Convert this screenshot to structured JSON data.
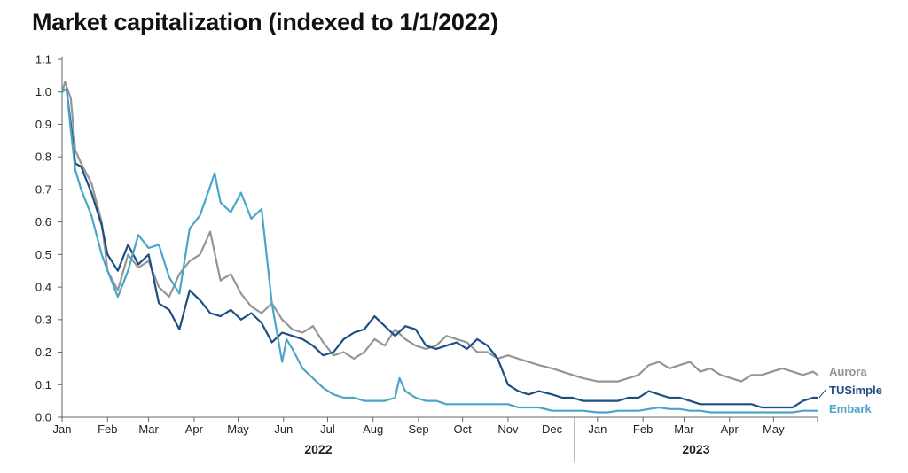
{
  "chart_data": {
    "type": "line",
    "title": "Market capitalization (indexed to 1/1/2022)",
    "xlabel": "",
    "ylabel": "",
    "ylim": [
      0,
      1.1
    ],
    "y_ticks": [
      "0.0",
      "0.1",
      "0.2",
      "0.3",
      "0.4",
      "0.5",
      "0.6",
      "0.7",
      "0.8",
      "0.9",
      "1.0",
      "1.1"
    ],
    "x_month_labels": [
      "Jan",
      "Feb",
      "Mar",
      "Apr",
      "May",
      "Jun",
      "Jul",
      "Aug",
      "Sep",
      "Oct",
      "Nov",
      "Dec",
      "Jan",
      "Feb",
      "Mar",
      "Apr",
      "May"
    ],
    "x_year_labels": [
      "2022",
      "2023"
    ],
    "x_start": "2022-01-01",
    "x_end": "2023-05-31",
    "grid": false,
    "legend": "inline labels at right end of lines",
    "series": [
      {
        "name": "Aurora",
        "color": "#959595",
        "points": [
          [
            "2022-01-01",
            1.0
          ],
          [
            "2022-01-03",
            1.03
          ],
          [
            "2022-01-07",
            0.98
          ],
          [
            "2022-01-10",
            0.82
          ],
          [
            "2022-01-14",
            0.78
          ],
          [
            "2022-01-21",
            0.72
          ],
          [
            "2022-01-28",
            0.6
          ],
          [
            "2022-02-01",
            0.45
          ],
          [
            "2022-02-08",
            0.39
          ],
          [
            "2022-02-15",
            0.5
          ],
          [
            "2022-02-22",
            0.46
          ],
          [
            "2022-03-01",
            0.48
          ],
          [
            "2022-03-08",
            0.4
          ],
          [
            "2022-03-15",
            0.37
          ],
          [
            "2022-03-22",
            0.44
          ],
          [
            "2022-03-29",
            0.48
          ],
          [
            "2022-04-05",
            0.5
          ],
          [
            "2022-04-12",
            0.57
          ],
          [
            "2022-04-19",
            0.42
          ],
          [
            "2022-04-26",
            0.44
          ],
          [
            "2022-05-03",
            0.38
          ],
          [
            "2022-05-10",
            0.34
          ],
          [
            "2022-05-17",
            0.32
          ],
          [
            "2022-05-24",
            0.35
          ],
          [
            "2022-05-31",
            0.3
          ],
          [
            "2022-06-07",
            0.27
          ],
          [
            "2022-06-14",
            0.26
          ],
          [
            "2022-06-21",
            0.28
          ],
          [
            "2022-06-28",
            0.23
          ],
          [
            "2022-07-05",
            0.19
          ],
          [
            "2022-07-12",
            0.2
          ],
          [
            "2022-07-19",
            0.18
          ],
          [
            "2022-07-26",
            0.2
          ],
          [
            "2022-08-02",
            0.24
          ],
          [
            "2022-08-09",
            0.22
          ],
          [
            "2022-08-16",
            0.27
          ],
          [
            "2022-08-23",
            0.24
          ],
          [
            "2022-08-30",
            0.22
          ],
          [
            "2022-09-06",
            0.21
          ],
          [
            "2022-09-13",
            0.22
          ],
          [
            "2022-09-20",
            0.25
          ],
          [
            "2022-09-27",
            0.24
          ],
          [
            "2022-10-04",
            0.23
          ],
          [
            "2022-10-11",
            0.2
          ],
          [
            "2022-10-18",
            0.2
          ],
          [
            "2022-10-25",
            0.18
          ],
          [
            "2022-11-01",
            0.19
          ],
          [
            "2022-11-08",
            0.18
          ],
          [
            "2022-11-15",
            0.17
          ],
          [
            "2022-11-22",
            0.16
          ],
          [
            "2022-12-01",
            0.15
          ],
          [
            "2022-12-08",
            0.14
          ],
          [
            "2022-12-15",
            0.13
          ],
          [
            "2022-12-22",
            0.12
          ],
          [
            "2023-01-01",
            0.11
          ],
          [
            "2023-01-08",
            0.11
          ],
          [
            "2023-01-15",
            0.11
          ],
          [
            "2023-01-22",
            0.12
          ],
          [
            "2023-01-29",
            0.13
          ],
          [
            "2023-02-05",
            0.16
          ],
          [
            "2023-02-12",
            0.17
          ],
          [
            "2023-02-19",
            0.15
          ],
          [
            "2023-02-26",
            0.16
          ],
          [
            "2023-03-05",
            0.17
          ],
          [
            "2023-03-12",
            0.14
          ],
          [
            "2023-03-19",
            0.15
          ],
          [
            "2023-03-26",
            0.13
          ],
          [
            "2023-04-02",
            0.12
          ],
          [
            "2023-04-09",
            0.11
          ],
          [
            "2023-04-16",
            0.13
          ],
          [
            "2023-04-23",
            0.13
          ],
          [
            "2023-04-30",
            0.14
          ],
          [
            "2023-05-07",
            0.15
          ],
          [
            "2023-05-14",
            0.14
          ],
          [
            "2023-05-21",
            0.13
          ],
          [
            "2023-05-28",
            0.14
          ],
          [
            "2023-05-31",
            0.13
          ]
        ]
      },
      {
        "name": "TUSimple",
        "color": "#1f4e82",
        "points": [
          [
            "2022-01-01",
            1.0
          ],
          [
            "2022-01-04",
            1.01
          ],
          [
            "2022-01-07",
            0.9
          ],
          [
            "2022-01-10",
            0.78
          ],
          [
            "2022-01-14",
            0.77
          ],
          [
            "2022-01-21",
            0.69
          ],
          [
            "2022-01-28",
            0.59
          ],
          [
            "2022-02-01",
            0.5
          ],
          [
            "2022-02-08",
            0.45
          ],
          [
            "2022-02-15",
            0.53
          ],
          [
            "2022-02-22",
            0.47
          ],
          [
            "2022-03-01",
            0.5
          ],
          [
            "2022-03-08",
            0.35
          ],
          [
            "2022-03-15",
            0.33
          ],
          [
            "2022-03-22",
            0.27
          ],
          [
            "2022-03-29",
            0.39
          ],
          [
            "2022-04-05",
            0.36
          ],
          [
            "2022-04-12",
            0.32
          ],
          [
            "2022-04-19",
            0.31
          ],
          [
            "2022-04-26",
            0.33
          ],
          [
            "2022-05-03",
            0.3
          ],
          [
            "2022-05-10",
            0.32
          ],
          [
            "2022-05-17",
            0.29
          ],
          [
            "2022-05-24",
            0.23
          ],
          [
            "2022-05-31",
            0.26
          ],
          [
            "2022-06-07",
            0.25
          ],
          [
            "2022-06-14",
            0.24
          ],
          [
            "2022-06-21",
            0.22
          ],
          [
            "2022-06-28",
            0.19
          ],
          [
            "2022-07-05",
            0.2
          ],
          [
            "2022-07-12",
            0.24
          ],
          [
            "2022-07-19",
            0.26
          ],
          [
            "2022-07-26",
            0.27
          ],
          [
            "2022-08-02",
            0.31
          ],
          [
            "2022-08-09",
            0.28
          ],
          [
            "2022-08-16",
            0.25
          ],
          [
            "2022-08-23",
            0.28
          ],
          [
            "2022-08-30",
            0.27
          ],
          [
            "2022-09-06",
            0.22
          ],
          [
            "2022-09-13",
            0.21
          ],
          [
            "2022-09-20",
            0.22
          ],
          [
            "2022-09-27",
            0.23
          ],
          [
            "2022-10-04",
            0.21
          ],
          [
            "2022-10-11",
            0.24
          ],
          [
            "2022-10-18",
            0.22
          ],
          [
            "2022-10-25",
            0.18
          ],
          [
            "2022-11-01",
            0.1
          ],
          [
            "2022-11-08",
            0.08
          ],
          [
            "2022-11-15",
            0.07
          ],
          [
            "2022-11-22",
            0.08
          ],
          [
            "2022-12-01",
            0.07
          ],
          [
            "2022-12-08",
            0.06
          ],
          [
            "2022-12-15",
            0.06
          ],
          [
            "2022-12-22",
            0.05
          ],
          [
            "2023-01-01",
            0.05
          ],
          [
            "2023-01-08",
            0.05
          ],
          [
            "2023-01-15",
            0.05
          ],
          [
            "2023-01-22",
            0.06
          ],
          [
            "2023-01-29",
            0.06
          ],
          [
            "2023-02-05",
            0.08
          ],
          [
            "2023-02-12",
            0.07
          ],
          [
            "2023-02-19",
            0.06
          ],
          [
            "2023-02-26",
            0.06
          ],
          [
            "2023-03-05",
            0.05
          ],
          [
            "2023-03-12",
            0.04
          ],
          [
            "2023-03-19",
            0.04
          ],
          [
            "2023-03-26",
            0.04
          ],
          [
            "2023-04-02",
            0.04
          ],
          [
            "2023-04-09",
            0.04
          ],
          [
            "2023-04-16",
            0.04
          ],
          [
            "2023-04-23",
            0.03
          ],
          [
            "2023-04-30",
            0.03
          ],
          [
            "2023-05-07",
            0.03
          ],
          [
            "2023-05-14",
            0.03
          ],
          [
            "2023-05-21",
            0.05
          ],
          [
            "2023-05-28",
            0.06
          ],
          [
            "2023-05-31",
            0.06
          ]
        ]
      },
      {
        "name": "Embark",
        "color": "#4aa6c8",
        "points": [
          [
            "2022-01-01",
            1.0
          ],
          [
            "2022-01-04",
            1.01
          ],
          [
            "2022-01-07",
            0.88
          ],
          [
            "2022-01-10",
            0.76
          ],
          [
            "2022-01-14",
            0.7
          ],
          [
            "2022-01-21",
            0.62
          ],
          [
            "2022-01-28",
            0.5
          ],
          [
            "2022-02-01",
            0.45
          ],
          [
            "2022-02-08",
            0.37
          ],
          [
            "2022-02-15",
            0.45
          ],
          [
            "2022-02-22",
            0.56
          ],
          [
            "2022-03-01",
            0.52
          ],
          [
            "2022-03-08",
            0.53
          ],
          [
            "2022-03-15",
            0.43
          ],
          [
            "2022-03-22",
            0.38
          ],
          [
            "2022-03-29",
            0.58
          ],
          [
            "2022-04-05",
            0.62
          ],
          [
            "2022-04-12",
            0.71
          ],
          [
            "2022-04-15",
            0.75
          ],
          [
            "2022-04-19",
            0.66
          ],
          [
            "2022-04-26",
            0.63
          ],
          [
            "2022-05-03",
            0.69
          ],
          [
            "2022-05-10",
            0.61
          ],
          [
            "2022-05-17",
            0.64
          ],
          [
            "2022-05-24",
            0.35
          ],
          [
            "2022-05-31",
            0.17
          ],
          [
            "2022-06-03",
            0.24
          ],
          [
            "2022-06-07",
            0.21
          ],
          [
            "2022-06-14",
            0.15
          ],
          [
            "2022-06-21",
            0.12
          ],
          [
            "2022-06-28",
            0.09
          ],
          [
            "2022-07-05",
            0.07
          ],
          [
            "2022-07-12",
            0.06
          ],
          [
            "2022-07-19",
            0.06
          ],
          [
            "2022-07-26",
            0.05
          ],
          [
            "2022-08-02",
            0.05
          ],
          [
            "2022-08-09",
            0.05
          ],
          [
            "2022-08-16",
            0.06
          ],
          [
            "2022-08-19",
            0.12
          ],
          [
            "2022-08-23",
            0.08
          ],
          [
            "2022-08-30",
            0.06
          ],
          [
            "2022-09-06",
            0.05
          ],
          [
            "2022-09-13",
            0.05
          ],
          [
            "2022-09-20",
            0.04
          ],
          [
            "2022-09-27",
            0.04
          ],
          [
            "2022-10-04",
            0.04
          ],
          [
            "2022-10-11",
            0.04
          ],
          [
            "2022-10-18",
            0.04
          ],
          [
            "2022-10-25",
            0.04
          ],
          [
            "2022-11-01",
            0.04
          ],
          [
            "2022-11-08",
            0.03
          ],
          [
            "2022-11-15",
            0.03
          ],
          [
            "2022-11-22",
            0.03
          ],
          [
            "2022-12-01",
            0.02
          ],
          [
            "2022-12-08",
            0.02
          ],
          [
            "2022-12-15",
            0.02
          ],
          [
            "2022-12-22",
            0.02
          ],
          [
            "2023-01-01",
            0.015
          ],
          [
            "2023-01-08",
            0.015
          ],
          [
            "2023-01-15",
            0.02
          ],
          [
            "2023-01-22",
            0.02
          ],
          [
            "2023-01-29",
            0.02
          ],
          [
            "2023-02-05",
            0.025
          ],
          [
            "2023-02-12",
            0.03
          ],
          [
            "2023-02-19",
            0.025
          ],
          [
            "2023-02-26",
            0.025
          ],
          [
            "2023-03-05",
            0.02
          ],
          [
            "2023-03-12",
            0.02
          ],
          [
            "2023-03-19",
            0.015
          ],
          [
            "2023-03-26",
            0.015
          ],
          [
            "2023-04-02",
            0.015
          ],
          [
            "2023-04-09",
            0.015
          ],
          [
            "2023-04-16",
            0.015
          ],
          [
            "2023-04-23",
            0.015
          ],
          [
            "2023-04-30",
            0.015
          ],
          [
            "2023-05-07",
            0.015
          ],
          [
            "2023-05-14",
            0.015
          ],
          [
            "2023-05-21",
            0.02
          ],
          [
            "2023-05-28",
            0.02
          ],
          [
            "2023-05-31",
            0.02
          ]
        ]
      }
    ]
  }
}
